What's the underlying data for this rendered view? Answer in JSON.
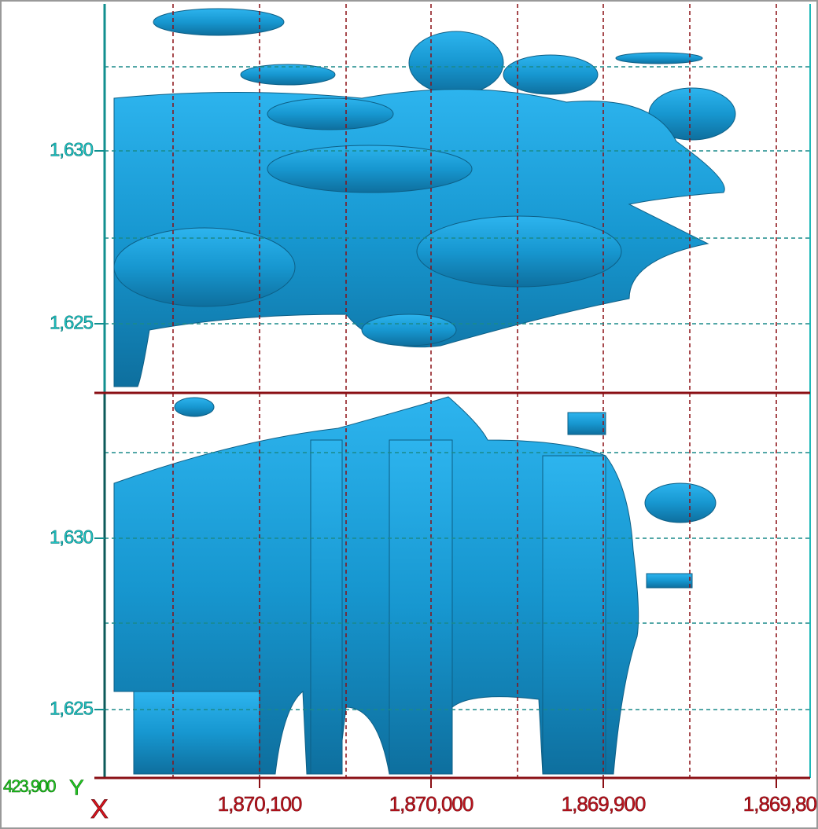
{
  "panels": [
    {
      "y_tick_labels": [
        "1,630",
        "1,625"
      ]
    },
    {
      "y_tick_labels": [
        "1,630",
        "1,625"
      ]
    }
  ],
  "x_tick_labels": [
    "1,870,100",
    "1,870,000",
    "1,869,900",
    "1,869,80"
  ],
  "x_axis_label": "X",
  "y_axis_label": "Y",
  "z_value_label": "423,900"
}
